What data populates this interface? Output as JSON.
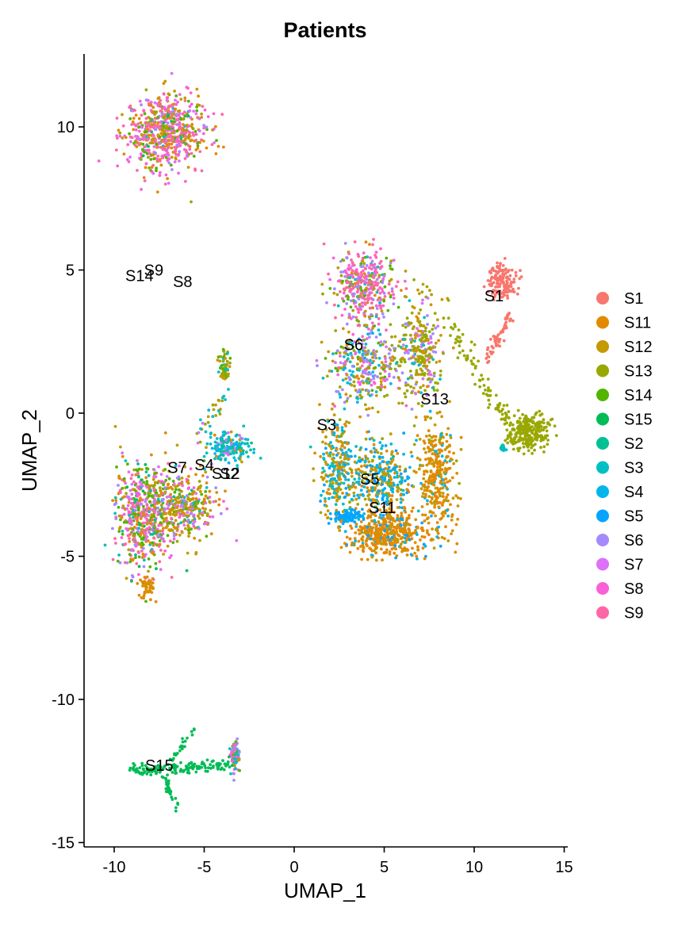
{
  "chart_data": {
    "type": "scatter",
    "title": "Patients",
    "xlabel": "UMAP_1",
    "ylabel": "UMAP_2",
    "xlim": [
      -11.5,
      15.5
    ],
    "ylim": [
      -15.2,
      12.6
    ],
    "xticks": [
      -10,
      -5,
      0,
      5,
      10,
      15
    ],
    "yticks": [
      -15,
      -10,
      -5,
      0,
      5,
      10
    ],
    "grid": false,
    "legend_position": "right",
    "series": [
      {
        "name": "S1",
        "color": "#F8766D"
      },
      {
        "name": "S11",
        "color": "#E38900"
      },
      {
        "name": "S12",
        "color": "#C49A00"
      },
      {
        "name": "S13",
        "color": "#99A800"
      },
      {
        "name": "S14",
        "color": "#53B400"
      },
      {
        "name": "S15",
        "color": "#00BC56"
      },
      {
        "name": "S2",
        "color": "#00C094"
      },
      {
        "name": "S3",
        "color": "#00BFC4"
      },
      {
        "name": "S4",
        "color": "#00B6EB"
      },
      {
        "name": "S5",
        "color": "#06A4FF"
      },
      {
        "name": "S6",
        "color": "#A58AFF"
      },
      {
        "name": "S7",
        "color": "#DF70F8"
      },
      {
        "name": "S8",
        "color": "#FB61D7"
      },
      {
        "name": "S9",
        "color": "#FF66A8"
      }
    ],
    "cluster_labels": [
      {
        "text": "S1",
        "x": 11.1,
        "y": 4.1
      },
      {
        "text": "S11",
        "x": 4.9,
        "y": -3.3
      },
      {
        "text": "S12",
        "x": -3.8,
        "y": -2.1
      },
      {
        "text": "S13",
        "x": 7.8,
        "y": 0.5
      },
      {
        "text": "S14",
        "x": -8.6,
        "y": 4.8
      },
      {
        "text": "S15",
        "x": -7.5,
        "y": -12.3
      },
      {
        "text": "S2",
        "x": -3.6,
        "y": -2.1
      },
      {
        "text": "S3",
        "x": 1.8,
        "y": -0.4
      },
      {
        "text": "S4",
        "x": -5.0,
        "y": -1.8
      },
      {
        "text": "S5",
        "x": 4.2,
        "y": -2.3
      },
      {
        "text": "S6",
        "x": 3.3,
        "y": 2.4
      },
      {
        "text": "S7",
        "x": -6.5,
        "y": -1.9
      },
      {
        "text": "S8",
        "x": -6.2,
        "y": 4.6
      },
      {
        "text": "S9",
        "x": -7.8,
        "y": 5.0
      }
    ],
    "clusters": [
      {
        "cx": -7.2,
        "cy": 9.8,
        "rx": 2.0,
        "ry": 1.2,
        "n": 650,
        "mix": {
          "S9": 0.24,
          "S8": 0.14,
          "S11": 0.16,
          "S12": 0.12,
          "S14": 0.12,
          "S6": 0.08,
          "S7": 0.06,
          "S13": 0.04,
          "S3": 0.02,
          "S15": 0.02
        }
      },
      {
        "cx": -8.3,
        "cy": -3.6,
        "rx": 1.5,
        "ry": 1.6,
        "n": 600,
        "mix": {
          "S14": 0.2,
          "S9": 0.16,
          "S12": 0.14,
          "S8": 0.12,
          "S7": 0.1,
          "S6": 0.08,
          "S11": 0.08,
          "S3": 0.04,
          "S13": 0.04,
          "S2": 0.02,
          "S15": 0.02
        }
      },
      {
        "cx": -6.0,
        "cy": -3.2,
        "rx": 1.6,
        "ry": 1.0,
        "n": 320,
        "mix": {
          "S12": 0.26,
          "S11": 0.16,
          "S7": 0.14,
          "S6": 0.1,
          "S14": 0.1,
          "S13": 0.08,
          "S8": 0.08,
          "S3": 0.04,
          "S2": 0.04
        }
      },
      {
        "cx": -3.6,
        "cy": -1.2,
        "rx": 1.1,
        "ry": 0.5,
        "n": 170,
        "mix": {
          "S3": 0.35,
          "S2": 0.15,
          "S4": 0.15,
          "S12": 0.12,
          "S7": 0.1,
          "S11": 0.08,
          "S6": 0.05
        }
      },
      {
        "cx": -3.9,
        "cy": 1.6,
        "rx": 0.3,
        "ry": 0.5,
        "n": 60,
        "mix": {
          "S13": 0.35,
          "S12": 0.25,
          "S14": 0.2,
          "S3": 0.2
        }
      },
      {
        "cx": -8.2,
        "cy": -6.1,
        "rx": 0.4,
        "ry": 0.45,
        "n": 45,
        "mix": {
          "S11": 0.75,
          "S12": 0.25
        }
      },
      {
        "cx": 3.9,
        "cy": 4.4,
        "rx": 1.5,
        "ry": 1.1,
        "n": 380,
        "mix": {
          "S9": 0.28,
          "S8": 0.16,
          "S6": 0.16,
          "S13": 0.12,
          "S3": 0.08,
          "S14": 0.08,
          "S12": 0.06,
          "S11": 0.06
        }
      },
      {
        "cx": 4.0,
        "cy": 1.7,
        "rx": 1.7,
        "ry": 1.3,
        "n": 320,
        "mix": {
          "S6": 0.18,
          "S13": 0.18,
          "S12": 0.14,
          "S3": 0.12,
          "S8": 0.1,
          "S4": 0.08,
          "S7": 0.08,
          "S11": 0.06,
          "S14": 0.06
        }
      },
      {
        "cx": 7.0,
        "cy": 2.2,
        "rx": 1.1,
        "ry": 1.6,
        "n": 280,
        "mix": {
          "S13": 0.4,
          "S12": 0.2,
          "S6": 0.15,
          "S7": 0.1,
          "S3": 0.08,
          "S11": 0.07
        }
      },
      {
        "cx": 2.4,
        "cy": -2.0,
        "rx": 0.9,
        "ry": 1.7,
        "n": 280,
        "mix": {
          "S12": 0.4,
          "S3": 0.18,
          "S4": 0.14,
          "S11": 0.12,
          "S13": 0.08,
          "S5": 0.08
        }
      },
      {
        "cx": 4.8,
        "cy": -2.3,
        "rx": 1.6,
        "ry": 1.2,
        "n": 360,
        "mix": {
          "S12": 0.22,
          "S4": 0.22,
          "S5": 0.2,
          "S11": 0.16,
          "S3": 0.1,
          "S13": 0.1
        }
      },
      {
        "cx": 5.3,
        "cy": -4.2,
        "rx": 1.9,
        "ry": 0.7,
        "n": 450,
        "mix": {
          "S11": 0.72,
          "S12": 0.12,
          "S5": 0.1,
          "S4": 0.06
        }
      },
      {
        "cx": 7.9,
        "cy": -2.2,
        "rx": 0.9,
        "ry": 1.9,
        "n": 320,
        "mix": {
          "S11": 0.6,
          "S12": 0.25,
          "S4": 0.1,
          "S13": 0.05
        }
      },
      {
        "cx": 3.0,
        "cy": -3.6,
        "rx": 0.7,
        "ry": 0.2,
        "n": 90,
        "mix": {
          "S5": 0.85,
          "S4": 0.15
        }
      },
      {
        "cx": 11.6,
        "cy": 4.6,
        "rx": 0.7,
        "ry": 0.5,
        "n": 150,
        "mix": {
          "S1": 1.0
        }
      },
      {
        "cx": 13.0,
        "cy": -0.7,
        "rx": 1.0,
        "ry": 0.55,
        "n": 260,
        "mix": {
          "S13": 1.0
        }
      },
      {
        "cx": 11.6,
        "cy": -1.2,
        "rx": 0.2,
        "ry": 0.15,
        "n": 15,
        "mix": {
          "S3": 0.6,
          "S2": 0.4
        }
      },
      {
        "cx": -3.3,
        "cy": -12.0,
        "rx": 0.25,
        "ry": 0.45,
        "n": 90,
        "mix": {
          "S6": 0.3,
          "S8": 0.2,
          "S3": 0.2,
          "S12": 0.15,
          "S14": 0.15
        }
      }
    ],
    "paths": [
      {
        "from": [
          10.6,
          1.8
        ],
        "to": [
          12.0,
          3.5
        ],
        "n": 60,
        "spread": 0.12,
        "mix": {
          "S1": 1.0
        }
      },
      {
        "from": [
          8.3,
          3.4
        ],
        "to": [
          10.3,
          1.4
        ],
        "n": 40,
        "spread": 0.25,
        "mix": {
          "S13": 1.0
        }
      },
      {
        "from": [
          10.2,
          1.2
        ],
        "to": [
          12.1,
          -0.4
        ],
        "n": 50,
        "spread": 0.2,
        "mix": {
          "S13": 1.0
        }
      },
      {
        "from": [
          -9.1,
          -12.5
        ],
        "to": [
          -3.6,
          -12.3
        ],
        "n": 140,
        "spread": 0.1,
        "mix": {
          "S15": 1.0
        }
      },
      {
        "from": [
          -7.3,
          -12.6
        ],
        "to": [
          -6.5,
          -13.8
        ],
        "n": 30,
        "spread": 0.08,
        "mix": {
          "S15": 1.0
        }
      },
      {
        "from": [
          -6.9,
          -12.3
        ],
        "to": [
          -5.6,
          -11.0
        ],
        "n": 25,
        "spread": 0.08,
        "mix": {
          "S15": 1.0
        }
      },
      {
        "from": [
          -5.3,
          -0.9
        ],
        "to": [
          -4.0,
          0.5
        ],
        "n": 30,
        "spread": 0.2,
        "mix": {
          "S13": 0.3,
          "S3": 0.3,
          "S12": 0.2,
          "S7": 0.2
        }
      }
    ]
  }
}
